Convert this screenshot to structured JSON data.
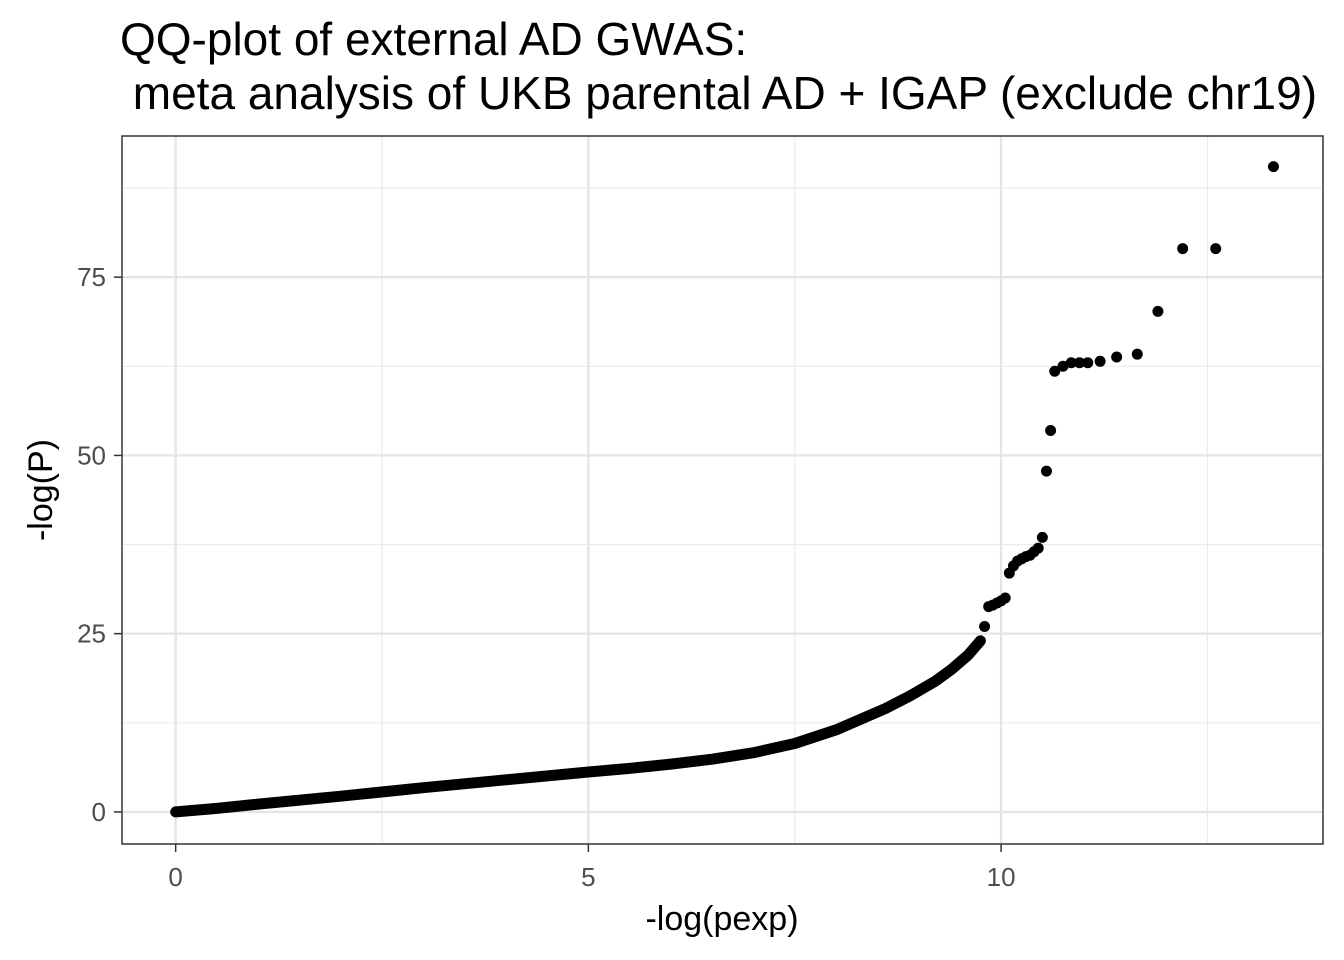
{
  "title_lines": [
    "QQ-plot of external AD GWAS:",
    " meta analysis of UKB parental AD + IGAP (exclude chr19)"
  ],
  "chart_data": {
    "type": "scatter",
    "title": "QQ-plot of external AD GWAS:\n meta analysis of UKB parental AD + IGAP (exclude chr19)",
    "xlabel": "-log(pexp)",
    "ylabel": "-log(P)",
    "xlim": [
      -0.65,
      13.9
    ],
    "ylim": [
      -4.5,
      94.8
    ],
    "xticks": [
      0,
      5,
      10
    ],
    "xtick_labels": [
      "0",
      "5",
      "10"
    ],
    "yticks": [
      0,
      25,
      50,
      75
    ],
    "ytick_labels": [
      "0",
      "25",
      "50",
      "75"
    ],
    "grid": true,
    "point_color": "#000000",
    "curve": [
      [
        0,
        0
      ],
      [
        0.5,
        0.5
      ],
      [
        1,
        1.1
      ],
      [
        2,
        2.2
      ],
      [
        3,
        3.4
      ],
      [
        4,
        4.5
      ],
      [
        5,
        5.6
      ],
      [
        5.5,
        6.1
      ],
      [
        6,
        6.7
      ],
      [
        6.5,
        7.4
      ],
      [
        7,
        8.3
      ],
      [
        7.5,
        9.6
      ],
      [
        8,
        11.5
      ],
      [
        8.3,
        13
      ],
      [
        8.6,
        14.5
      ],
      [
        8.9,
        16.3
      ],
      [
        9.2,
        18.3
      ],
      [
        9.4,
        20
      ],
      [
        9.6,
        22
      ],
      [
        9.75,
        24
      ]
    ],
    "points": [
      [
        9.8,
        26
      ],
      [
        9.85,
        28.8
      ],
      [
        9.9,
        29
      ],
      [
        9.95,
        29.3
      ],
      [
        10,
        29.6
      ],
      [
        10.05,
        30
      ],
      [
        10.1,
        33.5
      ],
      [
        10.15,
        34.5
      ],
      [
        10.2,
        35.2
      ],
      [
        10.25,
        35.5
      ],
      [
        10.3,
        35.8
      ],
      [
        10.35,
        36
      ],
      [
        10.4,
        36.5
      ],
      [
        10.45,
        37
      ],
      [
        10.5,
        38.5
      ],
      [
        10.55,
        47.8
      ],
      [
        10.6,
        53.5
      ],
      [
        10.65,
        61.8
      ],
      [
        10.75,
        62.5
      ],
      [
        10.85,
        63
      ],
      [
        10.95,
        63
      ],
      [
        11.05,
        63
      ],
      [
        11.2,
        63.2
      ],
      [
        11.4,
        63.8
      ],
      [
        11.65,
        64.2
      ],
      [
        11.9,
        70.2
      ],
      [
        12.2,
        79
      ],
      [
        12.6,
        79
      ],
      [
        13.3,
        90.5
      ]
    ]
  }
}
